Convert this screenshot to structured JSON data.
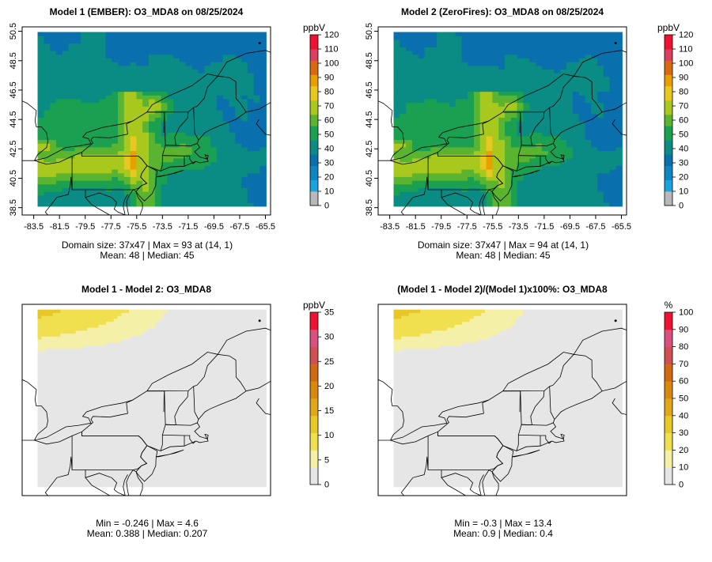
{
  "palettes": {
    "conc": [
      "#b8b8b8",
      "#1aa3e0",
      "#0d86c2",
      "#0a70ad",
      "#0a8c84",
      "#1aa050",
      "#5ab430",
      "#a8c81e",
      "#e8c820",
      "#e8a000",
      "#d86a10",
      "#d84060",
      "#f01030"
    ],
    "diff": [
      "#e6e6e6",
      "#f5f0a8",
      "#f0e050",
      "#e8c828",
      "#e0a818",
      "#d8880c",
      "#d06a10",
      "#d05050",
      "#d85080",
      "#f01030"
    ]
  },
  "geo_lines": [
    {
      "name": "new-york-state-outline",
      "points": [
        [
          -79.76,
          42.27
        ],
        [
          -79.76,
          42.0
        ],
        [
          -75.36,
          42.0
        ],
        [
          -75.1,
          41.8
        ],
        [
          -74.7,
          41.35
        ],
        [
          -73.65,
          40.99
        ],
        [
          -73.5,
          41.4
        ],
        [
          -73.5,
          42.05
        ],
        [
          -73.27,
          42.75
        ],
        [
          -73.35,
          45.0
        ],
        [
          -74.7,
          45.0
        ],
        [
          -75.8,
          44.4
        ],
        [
          -76.3,
          44.2
        ],
        [
          -76.2,
          43.5
        ],
        [
          -77.6,
          43.25
        ],
        [
          -78.9,
          43.3
        ],
        [
          -79.05,
          43.1
        ],
        [
          -78.9,
          42.9
        ],
        [
          -79.76,
          42.27
        ]
      ]
    },
    {
      "name": "pennsylvania-outline",
      "points": [
        [
          -80.52,
          42.0
        ],
        [
          -80.52,
          39.72
        ],
        [
          -75.79,
          39.72
        ],
        [
          -75.41,
          39.8
        ],
        [
          -75.13,
          40.0
        ],
        [
          -74.72,
          40.15
        ],
        [
          -74.95,
          40.35
        ],
        [
          -75.2,
          40.58
        ],
        [
          -75.1,
          40.85
        ],
        [
          -74.7,
          41.35
        ],
        [
          -75.1,
          41.8
        ],
        [
          -75.36,
          42.0
        ],
        [
          -79.76,
          42.0
        ],
        [
          -79.76,
          42.27
        ],
        [
          -80.52,
          42.0
        ]
      ]
    },
    {
      "name": "new-jersey-outline",
      "points": [
        [
          -74.7,
          41.35
        ],
        [
          -73.9,
          40.99
        ],
        [
          -74.0,
          40.48
        ],
        [
          -74.02,
          40.0
        ],
        [
          -74.3,
          39.45
        ],
        [
          -74.9,
          38.95
        ],
        [
          -75.3,
          39.3
        ],
        [
          -75.55,
          39.6
        ],
        [
          -75.13,
          40.0
        ],
        [
          -74.72,
          40.15
        ],
        [
          -74.95,
          40.35
        ],
        [
          -75.2,
          40.58
        ],
        [
          -75.1,
          40.85
        ],
        [
          -74.7,
          41.35
        ]
      ]
    },
    {
      "name": "delmarva-outline",
      "points": [
        [
          -75.79,
          39.72
        ],
        [
          -75.55,
          39.6
        ],
        [
          -75.4,
          39.2
        ],
        [
          -75.05,
          38.8
        ],
        [
          -75.05,
          38.45
        ],
        [
          -75.25,
          38.0
        ],
        [
          -75.6,
          37.5
        ],
        [
          -75.95,
          37.2
        ],
        [
          -76.0,
          37.6
        ],
        [
          -76.2,
          38.3
        ],
        [
          -76.3,
          38.9
        ],
        [
          -76.1,
          39.3
        ],
        [
          -75.79,
          39.72
        ]
      ]
    },
    {
      "name": "maryland-west-outline",
      "points": [
        [
          -79.48,
          39.72
        ],
        [
          -79.48,
          39.2
        ],
        [
          -78.4,
          39.5
        ],
        [
          -77.8,
          39.3
        ],
        [
          -77.45,
          39.2
        ],
        [
          -77.05,
          38.85
        ],
        [
          -77.25,
          38.4
        ],
        [
          -76.95,
          38.2
        ],
        [
          -76.4,
          38.0
        ],
        [
          -76.55,
          38.6
        ],
        [
          -76.45,
          39.0
        ],
        [
          -76.2,
          39.4
        ]
      ]
    },
    {
      "name": "virginia-outline",
      "points": [
        [
          -79.48,
          39.2
        ],
        [
          -79.0,
          38.7
        ],
        [
          -78.4,
          38.4
        ],
        [
          -77.6,
          38.0
        ],
        [
          -76.3,
          37.0
        ],
        [
          -76.0,
          36.55
        ]
      ]
    },
    {
      "name": "west-virginia-outline",
      "points": [
        [
          -80.52,
          39.72
        ],
        [
          -80.6,
          40.6
        ],
        [
          -80.66,
          40.0
        ],
        [
          -80.82,
          39.4
        ],
        [
          -81.7,
          39.2
        ],
        [
          -82.6,
          38.2
        ],
        [
          -82.0,
          37.6
        ]
      ]
    },
    {
      "name": "ohio-west-outline",
      "points": [
        [
          -80.52,
          42.0
        ],
        [
          -81.5,
          41.6
        ],
        [
          -82.5,
          41.45
        ],
        [
          -83.45,
          41.7
        ],
        [
          -84.5,
          41.7
        ],
        [
          -84.8,
          41.7
        ]
      ]
    },
    {
      "name": "michigan-outline",
      "points": [
        [
          -83.45,
          41.7
        ],
        [
          -83.2,
          42.1
        ],
        [
          -82.5,
          42.6
        ],
        [
          -82.4,
          43.0
        ],
        [
          -82.5,
          43.6
        ],
        [
          -82.9,
          44.0
        ],
        [
          -83.3,
          44.0
        ],
        [
          -83.4,
          44.4
        ],
        [
          -83.3,
          45.1
        ],
        [
          -84.0,
          45.6
        ],
        [
          -84.5,
          45.8
        ]
      ]
    },
    {
      "name": "ontario-shore",
      "points": [
        [
          -83.45,
          41.7
        ],
        [
          -82.5,
          41.9
        ],
        [
          -81.0,
          42.6
        ],
        [
          -80.0,
          42.7
        ],
        [
          -79.05,
          42.85
        ],
        [
          -79.25,
          43.2
        ],
        [
          -79.7,
          43.3
        ],
        [
          -79.4,
          43.6
        ],
        [
          -78.2,
          43.95
        ],
        [
          -76.6,
          44.2
        ],
        [
          -75.8,
          44.4
        ]
      ]
    },
    {
      "name": "us-canada-border",
      "points": [
        [
          -74.7,
          45.0
        ],
        [
          -71.5,
          45.01
        ],
        [
          -71.1,
          45.3
        ],
        [
          -70.8,
          45.4
        ],
        [
          -70.25,
          45.95
        ],
        [
          -70.0,
          46.7
        ],
        [
          -69.2,
          47.45
        ],
        [
          -68.3,
          47.35
        ],
        [
          -67.8,
          47.07
        ],
        [
          -67.78,
          45.93
        ],
        [
          -67.45,
          45.6
        ],
        [
          -67.0,
          45.0
        ]
      ]
    },
    {
      "name": "vermont-nh-border",
      "points": [
        [
          -72.45,
          42.73
        ],
        [
          -72.55,
          43.3
        ],
        [
          -72.2,
          43.95
        ],
        [
          -71.55,
          44.6
        ],
        [
          -71.5,
          45.01
        ]
      ]
    },
    {
      "name": "vermont-ma-border",
      "points": [
        [
          -73.27,
          42.75
        ],
        [
          -72.45,
          42.73
        ]
      ]
    },
    {
      "name": "nh-maine-border",
      "points": [
        [
          -70.7,
          43.1
        ],
        [
          -71.0,
          43.6
        ],
        [
          -71.08,
          45.3
        ]
      ]
    },
    {
      "name": "southern-new-england",
      "points": [
        [
          -73.5,
          42.05
        ],
        [
          -71.8,
          42.02
        ],
        [
          -71.38,
          42.02
        ],
        [
          -71.38,
          41.8
        ],
        [
          -71.12,
          41.49
        ],
        [
          -70.9,
          41.65
        ],
        [
          -71.8,
          41.32
        ],
        [
          -72.9,
          41.27
        ],
        [
          -73.65,
          40.99
        ]
      ]
    },
    {
      "name": "ma-nh-border",
      "points": [
        [
          -73.27,
          42.75
        ],
        [
          -71.3,
          42.7
        ],
        [
          -70.8,
          42.87
        ],
        [
          -70.7,
          43.1
        ]
      ]
    },
    {
      "name": "ct-ri-border",
      "points": [
        [
          -71.8,
          42.02
        ],
        [
          -71.8,
          41.32
        ]
      ]
    },
    {
      "name": "massachusetts-coast",
      "points": [
        [
          -70.8,
          42.87
        ],
        [
          -70.6,
          42.6
        ],
        [
          -71.0,
          42.3
        ],
        [
          -70.6,
          41.95
        ],
        [
          -70.0,
          41.8
        ],
        [
          -69.95,
          42.05
        ],
        [
          -70.2,
          42.1
        ],
        [
          -69.95,
          41.65
        ],
        [
          -70.6,
          41.55
        ],
        [
          -70.9,
          41.65
        ]
      ]
    },
    {
      "name": "maine-coast",
      "points": [
        [
          -70.7,
          43.1
        ],
        [
          -70.2,
          43.6
        ],
        [
          -69.8,
          43.8
        ],
        [
          -69.0,
          44.1
        ],
        [
          -68.4,
          44.3
        ],
        [
          -67.8,
          44.5
        ],
        [
          -67.0,
          45.0
        ]
      ]
    },
    {
      "name": "long-island",
      "points": [
        [
          -74.0,
          40.6
        ],
        [
          -73.0,
          40.75
        ],
        [
          -71.85,
          41.05
        ],
        [
          -72.5,
          40.85
        ],
        [
          -73.8,
          40.6
        ],
        [
          -74.0,
          40.6
        ]
      ]
    },
    {
      "name": "nova-scotia-outline",
      "points": [
        [
          -66.0,
          44.5
        ],
        [
          -66.2,
          44.2
        ],
        [
          -65.5,
          43.5
        ],
        [
          -64.5,
          43.3
        ]
      ]
    },
    {
      "name": "new-brunswick-coast",
      "points": [
        [
          -67.0,
          45.0
        ],
        [
          -66.0,
          45.2
        ],
        [
          -65.0,
          45.7
        ],
        [
          -64.5,
          46.0
        ]
      ]
    },
    {
      "name": "quebec-border",
      "points": [
        [
          -74.7,
          45.0
        ],
        [
          -74.3,
          45.5
        ],
        [
          -73.0,
          46.1
        ],
        [
          -71.2,
          46.8
        ],
        [
          -70.0,
          47.6
        ],
        [
          -69.2,
          47.45
        ]
      ]
    },
    {
      "name": "gaspe-coast",
      "points": [
        [
          -69.2,
          47.45
        ],
        [
          -68.5,
          48.4
        ],
        [
          -67.0,
          49.0
        ],
        [
          -65.5,
          49.2
        ],
        [
          -64.3,
          48.8
        ]
      ]
    },
    {
      "name": "lake-champlain",
      "points": [
        [
          -73.35,
          45.0
        ],
        [
          -73.38,
          44.5
        ],
        [
          -73.4,
          43.6
        ]
      ]
    }
  ],
  "panels": [
    {
      "title": "Model 1 (EMBER): O3_MDA8 on 08/25/2024",
      "unit": "ppbV",
      "palette": "conc",
      "field": {
        "model": "conc",
        "shift": 0
      },
      "show_axes": true,
      "chart_data": {
        "type": "heatmap",
        "title": "Model 1 (EMBER): O3_MDA8 on 08/25/2024",
        "xlim": [
          -83.5,
          -65.5
        ],
        "ylim": [
          38.5,
          50.5
        ],
        "x_ticks": [
          "-83.5",
          "-81.5",
          "-79.5",
          "-77.5",
          "-75.5",
          "-73.5",
          "-71.5",
          "-69.5",
          "-67.5",
          "-65.5"
        ],
        "y_ticks": [
          "38.5",
          "40.5",
          "42.5",
          "44.5",
          "46.5",
          "48.5",
          "50.5"
        ],
        "colorbar": {
          "label": "ppbV",
          "min": 0,
          "max": 120,
          "ticks": [
            "0",
            "10",
            "20",
            "30",
            "40",
            "50",
            "60",
            "70",
            "80",
            "90",
            "100",
            "110",
            "120"
          ]
        }
      },
      "stats": [
        "Domain size: 37x47 | Max = 93 at (14, 1)",
        "Mean: 48 |  Median: 45"
      ]
    },
    {
      "title": "Model 2 (ZeroFires): O3_MDA8 on 08/25/2024",
      "unit": "ppbV",
      "palette": "conc",
      "field": {
        "model": "conc",
        "shift": -0.4
      },
      "show_axes": true,
      "chart_data": {
        "type": "heatmap",
        "title": "Model 2 (ZeroFires): O3_MDA8 on 08/25/2024",
        "xlim": [
          -83.5,
          -65.5
        ],
        "ylim": [
          38.5,
          50.5
        ],
        "x_ticks": [
          "-83.5",
          "-81.5",
          "-79.5",
          "-77.5",
          "-75.5",
          "-73.5",
          "-71.5",
          "-69.5",
          "-67.5",
          "-65.5"
        ],
        "y_ticks": [
          "38.5",
          "40.5",
          "42.5",
          "44.5",
          "46.5",
          "48.5",
          "50.5"
        ],
        "colorbar": {
          "label": "ppbV",
          "min": 0,
          "max": 120,
          "ticks": [
            "0",
            "10",
            "20",
            "30",
            "40",
            "50",
            "60",
            "70",
            "80",
            "90",
            "100",
            "110",
            "120"
          ]
        }
      },
      "stats": [
        "Domain size: 37x47 | Max = 94 at (14, 1)",
        "Mean: 48 |  Median: 45"
      ]
    },
    {
      "title": "Model 1 - Model 2: O3_MDA8",
      "unit": "ppbV",
      "palette": "diff",
      "field": {
        "model": "diff",
        "scale": 4.6
      },
      "show_axes": false,
      "chart_data": {
        "type": "heatmap",
        "title": "Model 1 - Model 2: O3_MDA8",
        "xlim": [
          -83.5,
          -65.5
        ],
        "ylim": [
          38.5,
          50.5
        ],
        "colorbar": {
          "label": "ppbV",
          "min": 0,
          "max": 35,
          "ticks": [
            "0",
            "5",
            "10",
            "15",
            "20",
            "25",
            "30",
            "35"
          ]
        }
      },
      "stats": [
        "Min = -0.246 | Max = 4.6",
        "Mean: 0.388 |  Median: 0.207"
      ]
    },
    {
      "title": "(Model 1 - Model 2)/(Model 1)x100%: O3_MDA8",
      "unit": "%",
      "palette": "diff",
      "field": {
        "model": "diff",
        "scale": 13.4
      },
      "show_axes": false,
      "chart_data": {
        "type": "heatmap",
        "title": "(Model 1 - Model 2)/(Model 1)x100%: O3_MDA8",
        "xlim": [
          -83.5,
          -65.5
        ],
        "ylim": [
          38.5,
          50.5
        ],
        "colorbar": {
          "label": "%",
          "min": 0,
          "max": 100,
          "ticks": [
            "0",
            "10",
            "20",
            "30",
            "40",
            "50",
            "60",
            "70",
            "80",
            "90",
            "100"
          ]
        }
      },
      "stats": [
        "Min = -0.3 | Max = 13.4",
        "Mean: 0.9 |  Median: 0.4"
      ]
    }
  ]
}
